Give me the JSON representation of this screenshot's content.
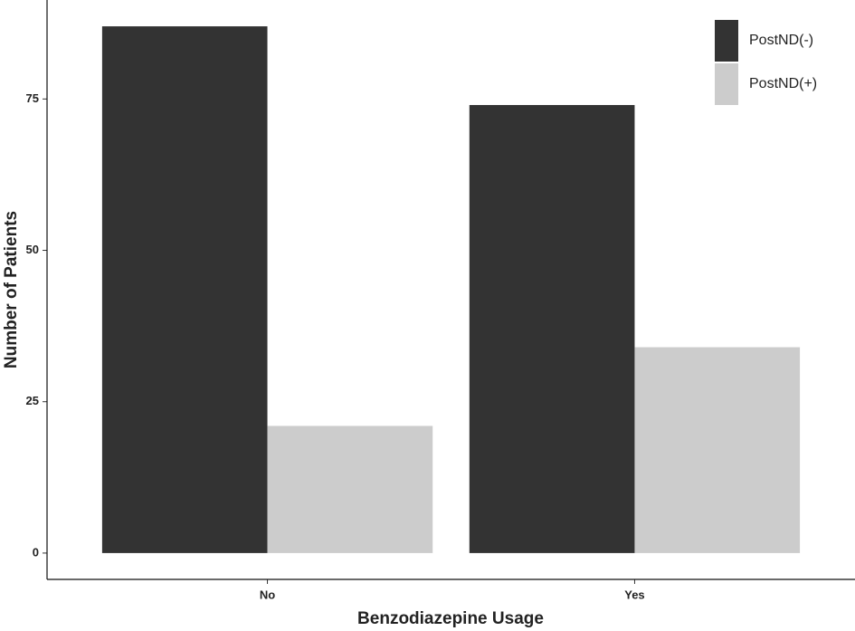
{
  "chart_data": {
    "type": "bar",
    "x_label": "Benzodiazepine Usage",
    "y_label": "Number of Patients",
    "categories": [
      "No",
      "Yes"
    ],
    "series": [
      {
        "name": "PostND(-)",
        "color": "#333333",
        "values": [
          87,
          74
        ]
      },
      {
        "name": "PostND(+)",
        "color": "#cccccc",
        "values": [
          21,
          34
        ]
      }
    ],
    "ylim": [
      -4.35,
      91.35
    ],
    "yticks": [
      0,
      25,
      50,
      75
    ],
    "legend": "top-right"
  }
}
